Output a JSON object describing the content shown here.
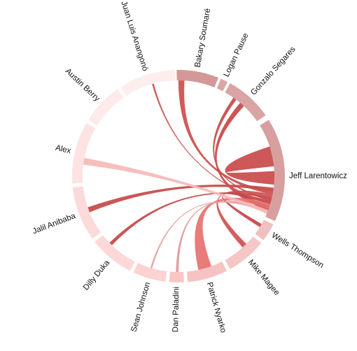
{
  "diagram": {
    "type": "chord",
    "nodes": [
      {
        "id": "bakary",
        "label": "Bakary Soumaré",
        "color": "#d39898"
      },
      {
        "id": "logan",
        "label": "Logan Pause",
        "color": "#dda6a6"
      },
      {
        "id": "gonzalo",
        "label": "Gonzalo Segares",
        "color": "#d9a4a4"
      },
      {
        "id": "jeff",
        "label": "Jeff Larentowicz",
        "color": "#d89f9f"
      },
      {
        "id": "wells",
        "label": "Wells Thompson",
        "color": "#f0c0c0"
      },
      {
        "id": "mike",
        "label": "Mike Magee",
        "color": "#f6c6c6"
      },
      {
        "id": "patrick",
        "label": "Patrick Nyarko",
        "color": "#f7c2c2"
      },
      {
        "id": "dan",
        "label": "Dan Paladini",
        "color": "#f9c6c6"
      },
      {
        "id": "sean",
        "label": "Sean Johnson",
        "color": "#fcd2d2"
      },
      {
        "id": "dilly",
        "label": "Dilly Duka",
        "color": "#fdd8d8"
      },
      {
        "id": "jalil",
        "label": "Jalil Anibaba",
        "color": "#fddada"
      },
      {
        "id": "alex",
        "label": "Alex",
        "color": "#fde3e3"
      },
      {
        "id": "austin",
        "label": "Austin Berry",
        "color": "#feeaea"
      },
      {
        "id": "juan",
        "label": "Juan Luis Anangonó",
        "color": "#fdeeee"
      }
    ],
    "links": [
      {
        "source": "bakary",
        "target": "jeff",
        "value": 5,
        "color": "#cc4d4d"
      },
      {
        "source": "logan",
        "target": "jeff",
        "value": 3,
        "color": "#c84848"
      },
      {
        "source": "gonzalo",
        "target": "jeff",
        "value": 4,
        "color": "#c84646"
      },
      {
        "source": "jeff",
        "target": "jeff",
        "value": 6,
        "color": "#c94a4a"
      },
      {
        "source": "wells",
        "target": "jeff",
        "value": 3,
        "color": "#c44545"
      },
      {
        "source": "mike",
        "target": "jeff",
        "value": 4,
        "color": "#d05050"
      },
      {
        "source": "patrick",
        "target": "jeff",
        "value": 8,
        "color": "#e87070"
      },
      {
        "source": "dan",
        "target": "jeff",
        "value": 2,
        "color": "#dd9a9a"
      },
      {
        "source": "sean",
        "target": "jeff",
        "value": 1,
        "color": "#e3a3a3"
      },
      {
        "source": "dilly",
        "target": "jeff",
        "value": 3,
        "color": "#c34646"
      },
      {
        "source": "jalil",
        "target": "jeff",
        "value": 5,
        "color": "#c54848"
      },
      {
        "source": "alex",
        "target": "jeff",
        "value": 5,
        "color": "#f6b9b9"
      },
      {
        "source": "juan",
        "target": "jeff",
        "value": 1,
        "color": "#c85555"
      }
    ]
  }
}
